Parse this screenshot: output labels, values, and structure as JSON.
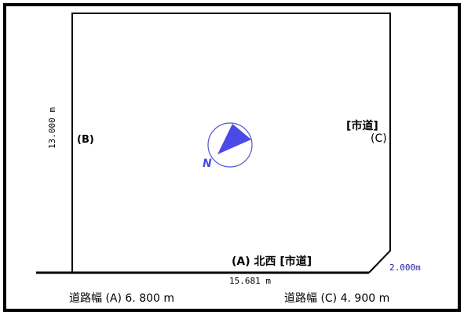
{
  "plot": {
    "left_frontage": "13.000 m",
    "label_b": "(B)",
    "city_road_bracket": "[市道]",
    "label_c": "(C)",
    "north_label": "N",
    "road_a_label": "(A) 北西 [市道]",
    "bottom_frontage": "15.681 m",
    "corner_cut": "2.000m",
    "road_width_a": "道路幅 (A) 6. 800  m",
    "road_width_c": "道路幅 (C) 4. 900  m"
  },
  "colors": {
    "line": "#000000",
    "compass": "#4a4ae8",
    "annotation_blue": "#1a1aaa"
  }
}
